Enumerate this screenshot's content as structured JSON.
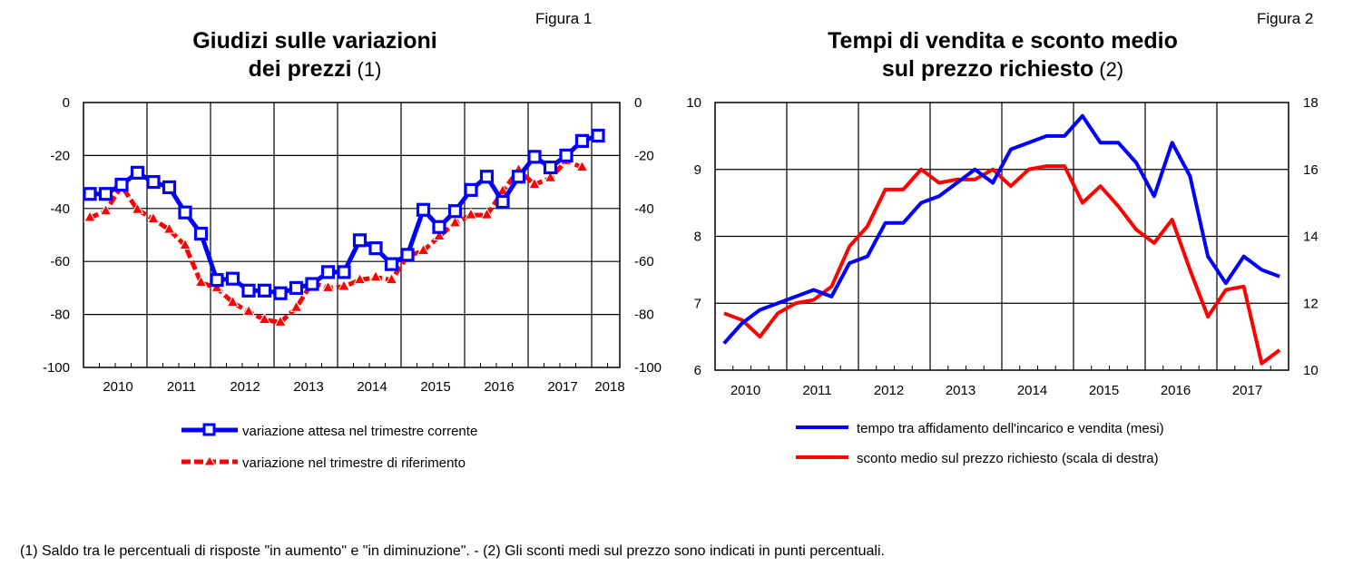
{
  "chart_data": [
    {
      "type": "line",
      "figure_label": "Figura 1",
      "title_line1": "Giudizi sulle variazioni",
      "title_line2": "dei prezzi",
      "title_note": "(1)",
      "x_frequency": "quarterly",
      "x_start": "2010Q1",
      "x_tick_labels": [
        "2010",
        "2011",
        "2012",
        "2013",
        "2014",
        "2015",
        "2016",
        "2017",
        "2018"
      ],
      "ylim_left": [
        -100,
        0
      ],
      "ylim_right": [
        -100,
        0
      ],
      "y_ticks": [
        0,
        -20,
        -40,
        -60,
        -80,
        -100
      ],
      "grid": true,
      "legend_position": "bottom",
      "series": [
        {
          "name": "variazione attesa nel trimestre corrente",
          "color": "#0000ff",
          "marker": "square",
          "style": "solid",
          "values": [
            -34.5,
            -34.5,
            -31,
            -26.5,
            -30,
            -32,
            -41.5,
            -49.5,
            -67,
            -66.5,
            -71,
            -71,
            -72,
            -70,
            -68.5,
            -64,
            -64,
            -52,
            -55,
            -61,
            -57.5,
            -40.5,
            -47,
            -41,
            -33,
            -28,
            -37.5,
            -28,
            -20.5,
            -24.5,
            -20,
            -14.5,
            -12.5
          ]
        },
        {
          "name": "variazione nel trimestre di riferimento",
          "color": "#ff0000",
          "marker": "triangle",
          "style": "dashed",
          "values": [
            -43.5,
            -41,
            -31.5,
            -40.5,
            -44,
            -48,
            -54,
            -68,
            -70,
            -75.5,
            -79,
            -82,
            -83,
            -77.5,
            -68,
            -70,
            -69.5,
            -67,
            -66,
            -67,
            -58,
            -56,
            -50.5,
            -45.5,
            -42.5,
            -42.5,
            -33.5,
            -25.5,
            -31,
            -28.5,
            -22,
            -24.5
          ]
        }
      ]
    },
    {
      "type": "line",
      "figure_label": "Figura 2",
      "title_line1": "Tempi di vendita e sconto medio",
      "title_line2": "sul prezzo richiesto",
      "title_note": "(2)",
      "x_frequency": "quarterly",
      "x_start": "2010Q1",
      "x_tick_labels": [
        "2010",
        "2011",
        "2012",
        "2013",
        "2014",
        "2015",
        "2016",
        "2017"
      ],
      "ylim_left": [
        6,
        10
      ],
      "y_ticks_left": [
        10,
        9,
        8,
        7,
        6
      ],
      "ylim_right": [
        10,
        18
      ],
      "y_ticks_right": [
        18,
        16,
        14,
        12,
        10
      ],
      "grid": true,
      "legend_position": "bottom",
      "series": [
        {
          "name": "tempo tra affidamento dell'incarico e vendita (mesi)",
          "color": "#0000ff",
          "axis": "left",
          "values": [
            6.4,
            6.7,
            6.9,
            7.0,
            7.1,
            7.2,
            7.1,
            7.6,
            7.7,
            8.2,
            8.2,
            8.5,
            8.6,
            8.8,
            9.0,
            8.8,
            9.3,
            9.4,
            9.5,
            9.5,
            9.8,
            9.4,
            9.4,
            9.1,
            8.6,
            9.4,
            8.9,
            7.7,
            7.3,
            7.7,
            7.5,
            7.4
          ]
        },
        {
          "name": "sconto medio sul prezzo richiesto (scala di destra)",
          "color": "#ff0000",
          "axis": "right",
          "values": [
            11.7,
            11.5,
            11.0,
            11.7,
            12.0,
            12.1,
            12.5,
            13.7,
            14.3,
            15.4,
            15.4,
            16.0,
            15.6,
            15.7,
            15.7,
            16.0,
            15.5,
            16.0,
            16.1,
            16.1,
            15.0,
            15.5,
            14.9,
            14.2,
            13.8,
            14.5,
            13.0,
            11.6,
            12.4,
            12.5,
            10.2,
            10.6
          ]
        }
      ]
    }
  ],
  "footnote": "(1) Saldo tra le percentuali di risposte \"in aumento\" e \"in diminuzione\". - (2) Gli sconti medi sul prezzo sono indicati in punti percentuali."
}
